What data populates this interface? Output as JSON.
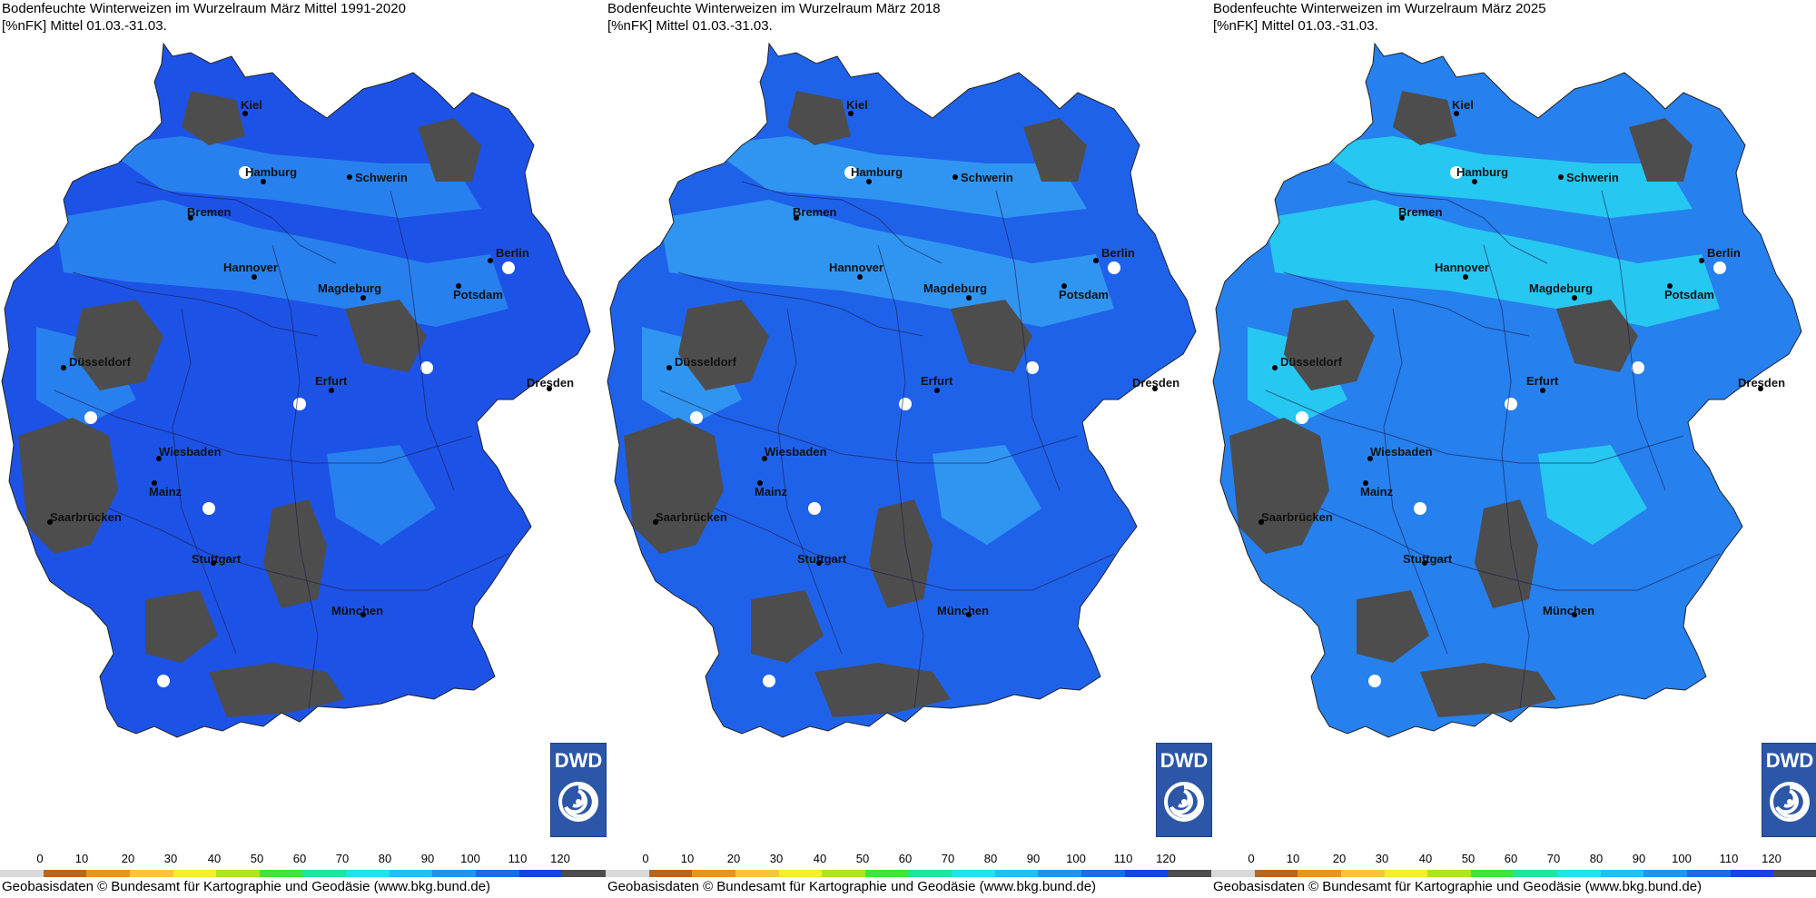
{
  "panels": [
    {
      "title_line1": "Bodenfeuchte Winterweizen im Wurzelraum März Mittel 1991-2020",
      "title_line2": "[%nFK] Mittel 01.03.-31.03.",
      "fill_color": "#1d52e6",
      "patch_color": "#4d4d4d",
      "light_color": "#2a8cf0"
    },
    {
      "title_line1": "Bodenfeuchte Winterweizen im Wurzelraum März 2018",
      "title_line2": "[%nFK] Mittel 01.03.-31.03.",
      "fill_color": "#1f62ea",
      "patch_color": "#4d4d4d",
      "light_color": "#35a2f2"
    },
    {
      "title_line1": "Bodenfeuchte Winterweizen im Wurzelraum März 2025",
      "title_line2": "[%nFK] Mittel 01.03.-31.03.",
      "fill_color": "#2680ee",
      "patch_color": "#4d4d4d",
      "light_color": "#27d8f0"
    }
  ],
  "cities": [
    {
      "name": "Kiel"
    },
    {
      "name": "Hamburg"
    },
    {
      "name": "Schwerin"
    },
    {
      "name": "Bremen"
    },
    {
      "name": "Berlin"
    },
    {
      "name": "Potsdam"
    },
    {
      "name": "Hannover"
    },
    {
      "name": "Magdeburg"
    },
    {
      "name": "Düsseldorf"
    },
    {
      "name": "Erfurt"
    },
    {
      "name": "Dresden"
    },
    {
      "name": "Wiesbaden"
    },
    {
      "name": "Mainz"
    },
    {
      "name": "Saarbrücken"
    },
    {
      "name": "Stuttgart"
    },
    {
      "name": "München"
    }
  ],
  "legend": {
    "ticks": [
      "0",
      "10",
      "20",
      "30",
      "40",
      "50",
      "60",
      "70",
      "80",
      "90",
      "100",
      "110",
      "120"
    ],
    "colors": [
      "#d9d9d9",
      "#b8661e",
      "#e6961e",
      "#f5c83a",
      "#f5ef28",
      "#aee61e",
      "#3ee63e",
      "#1ee6a0",
      "#1ee6e6",
      "#1ec2f5",
      "#1e96f0",
      "#1e6aeb",
      "#1e3ee6",
      "#4d4d4d"
    ]
  },
  "logo_text": "DWD",
  "footer": "Geobasisdaten © Bundesamt für Kartographie und Geodäsie (www.bkg.bund.de)"
}
